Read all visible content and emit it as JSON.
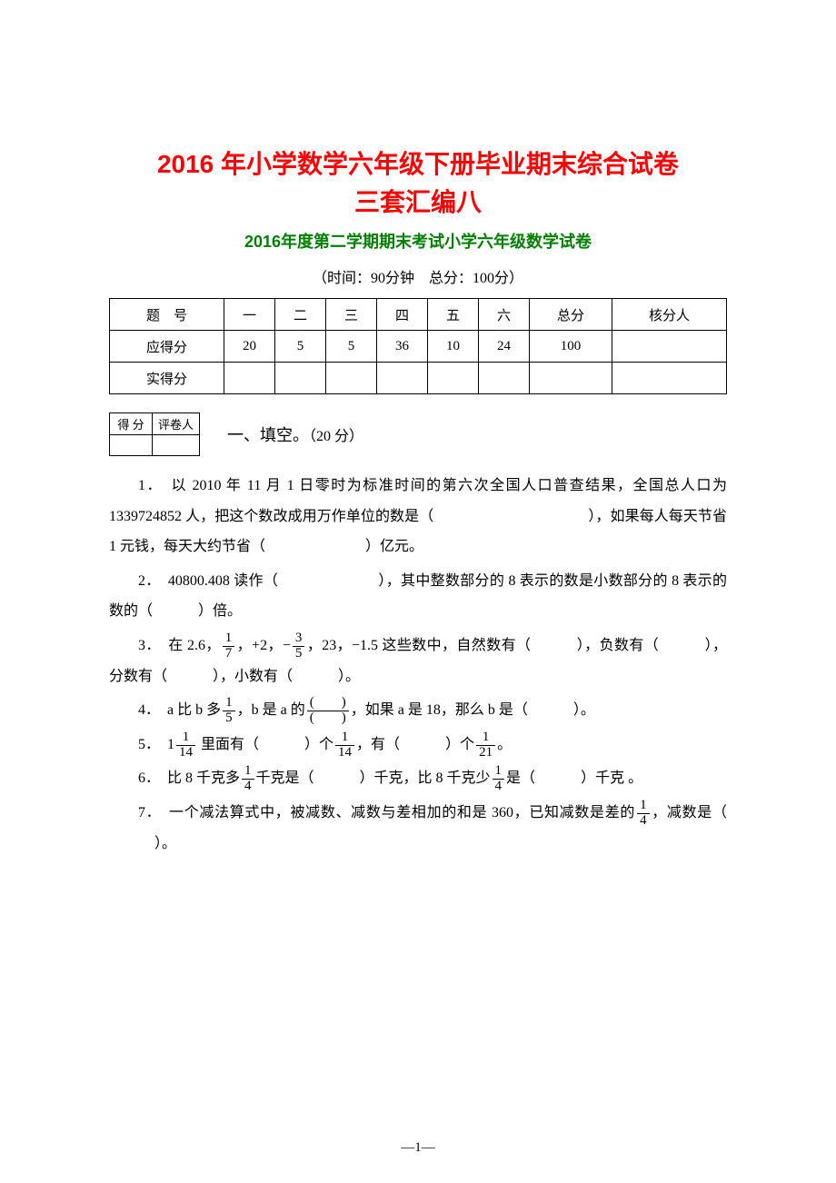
{
  "title_main_line1": "2016 年小学数学六年级下册毕业期末综合试卷",
  "title_main_line2": "三套汇编八",
  "title_sub": "2016年度第二学期期末考试小学六年级数学试卷",
  "time_info": "（时间：90分钟　总分：100分）",
  "score_table": {
    "header": [
      "题　号",
      "一",
      "二",
      "三",
      "四",
      "五",
      "六",
      "总分",
      "核分人"
    ],
    "row_label_1": "应得分",
    "row_values_1": [
      "20",
      "5",
      "5",
      "36",
      "10",
      "24",
      "100",
      ""
    ],
    "row_label_2": "实得分",
    "row_values_2": [
      "",
      "",
      "",
      "",
      "",
      "",
      "",
      ""
    ]
  },
  "mini_table": {
    "h1": "得 分",
    "h2": "评卷人"
  },
  "section_1": {
    "title": "一、填空。",
    "points": "（20 分）"
  },
  "q1_prefix": "1．　以 2010 年 11 月 1 日零时为标准时间的第六次全国人口普查结果，全国总人口为 1339724852 人，把这个数改成用万作单位的数是（",
  "q1_mid": "），如果每人每天节省 1 元钱，每天大约节省（",
  "q1_suffix": "）亿元。",
  "q2_prefix": "2．　40800.408 读作（",
  "q2_mid": "），其中整数部分的 8 表示的数是小数部分的 8 表示的数的（",
  "q2_suffix": "）倍。",
  "q3_a": "3．　在 2.6，",
  "q3_b": "，+2，−",
  "q3_c": "，23，−1.5 这些数中，自然数有（",
  "q3_d": "），负数有（",
  "q3_e": "），分数有（",
  "q3_f": "），小数有（",
  "q3_g": "）。",
  "q4_a": "4．　a 比 b 多",
  "q4_b": "，b 是 a 的",
  "q4_c": "，如果 a 是 18，那么 b 是（",
  "q4_d": "）。",
  "q5_a": "5．　1",
  "q5_b": "里面有（",
  "q5_c": "）个",
  "q5_d": "，有（",
  "q5_e": "）个",
  "q5_f": "。",
  "q6_a": "6．　比 8 千克多",
  "q6_b": "千克是（",
  "q6_c": "）千克，比 8 千克少",
  "q6_d": "是（",
  "q6_e": "）千克 。",
  "q7_a": "7．　一个减法算式中，被减数、减数与差相加的和是 360，已知减数是差的",
  "q7_b": "，减数是（",
  "q7_c": "）。",
  "fractions": {
    "one_seventh": {
      "num": "1",
      "den": "7"
    },
    "three_fifths": {
      "num": "3",
      "den": "5"
    },
    "one_fifth": {
      "num": "1",
      "den": "5"
    },
    "paren": {
      "num": "(　　)",
      "den": "(　　)"
    },
    "one_fourteenth": {
      "num": "1",
      "den": "14"
    },
    "one_twentyfirst": {
      "num": "1",
      "den": "21"
    },
    "one_fourth": {
      "num": "1",
      "den": "4"
    }
  },
  "page_number": "—1—"
}
